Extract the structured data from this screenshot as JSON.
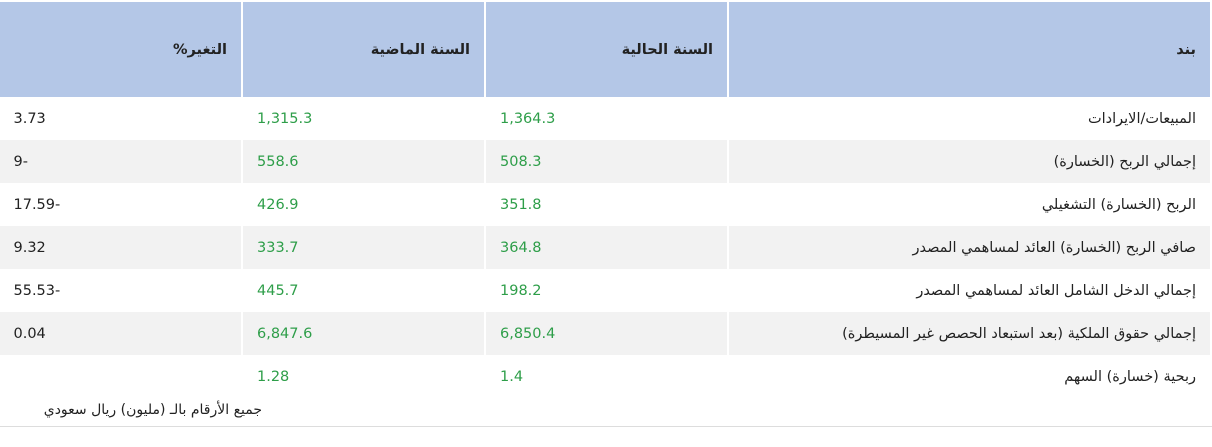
{
  "table": {
    "columns": [
      "بند",
      "السنة الحالية",
      "السنة الماضية",
      "التغير%"
    ],
    "rows": [
      [
        "المبيعات/الايرادات",
        "1,364.3",
        "1,315.3",
        "3.73"
      ],
      [
        "إجمالي الربح (الخسارة)",
        "508.3",
        "558.6",
        "9-"
      ],
      [
        "الربح (الخسارة) التشغيلي",
        "351.8",
        "426.9",
        "17.59-"
      ],
      [
        "صافي الربح (الخسارة) العائد لمساهمي المصدر",
        "364.8",
        "333.7",
        "9.32"
      ],
      [
        "إجمالي الدخل الشامل العائد لمساهمي المصدر",
        "198.2",
        "445.7",
        "55.53-"
      ],
      [
        "إجمالي حقوق الملكية (بعد استبعاد الحصص غير المسيطرة)",
        "6,850.4",
        "6,847.6",
        "0.04"
      ],
      [
        "ربحية (خسارة) السهم",
        "1.4",
        "1.28"
      ]
    ]
  },
  "footnote": "جميع الأرقام بالـ (مليون) ريال سعودي"
}
